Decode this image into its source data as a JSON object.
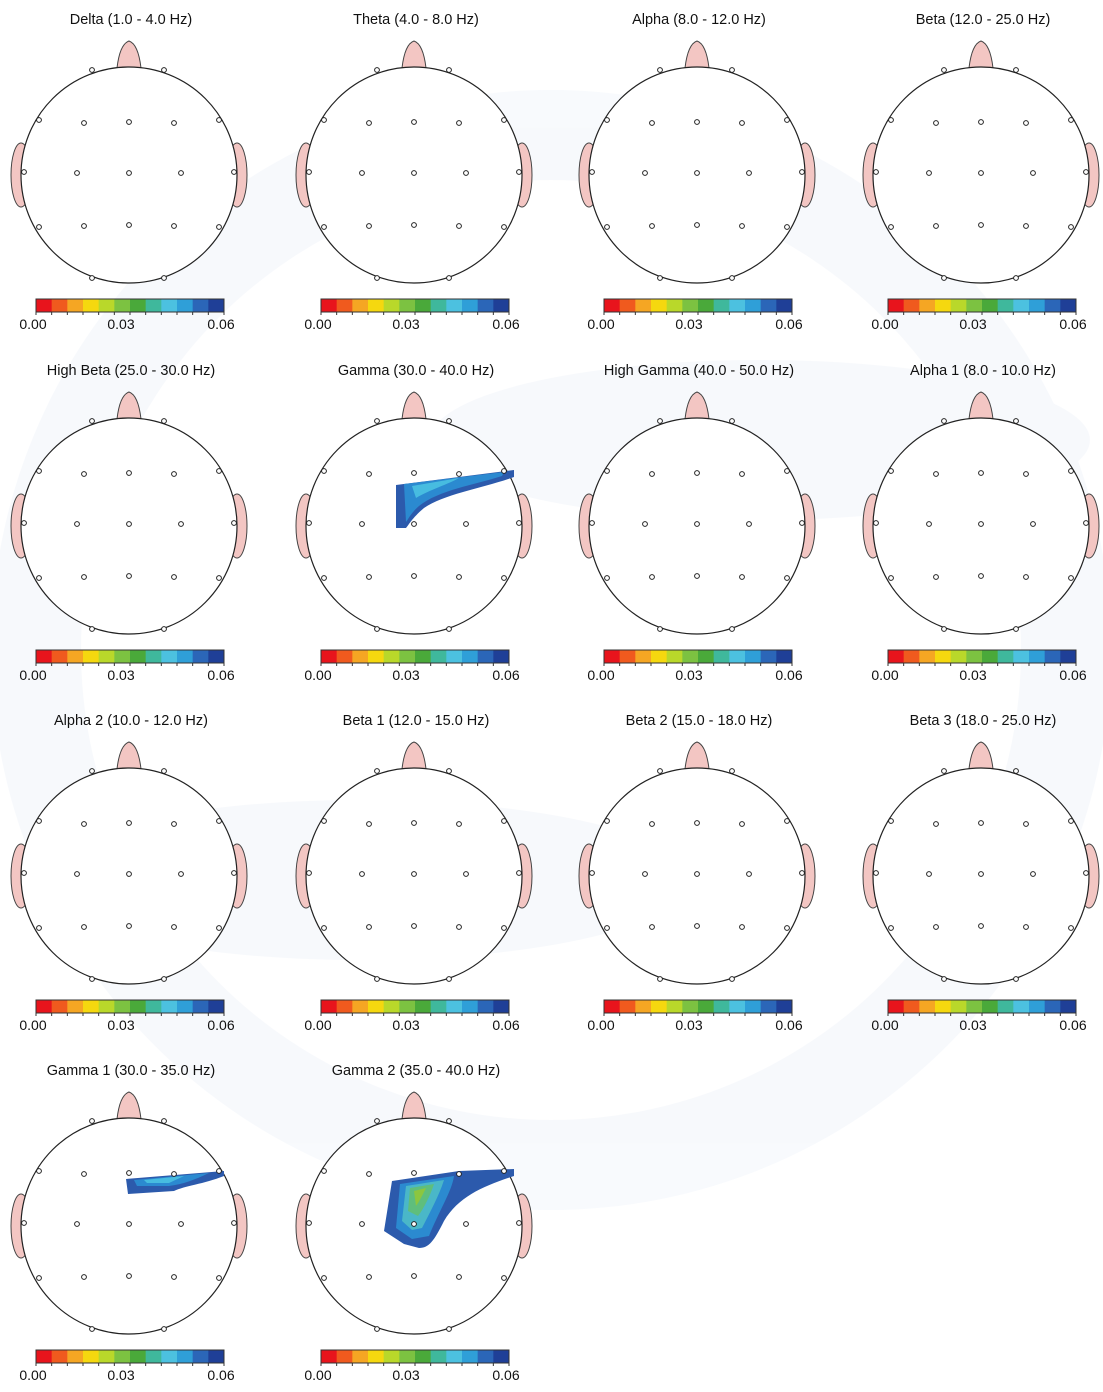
{
  "scale": {
    "colors": [
      "#e8141c",
      "#f05a1e",
      "#f5a623",
      "#f5d80f",
      "#b9d82a",
      "#7cc241",
      "#4aa93a",
      "#3fb89c",
      "#4cc1e0",
      "#2f9fd8",
      "#2b66b8",
      "#1f3f97"
    ],
    "tick_labels": [
      "0.00",
      "0.03",
      "0.06"
    ]
  },
  "chart_data": [
    {
      "type": "heatmap",
      "title": "Delta (1.0 - 4.0 Hz)",
      "hotspots": []
    },
    {
      "type": "heatmap",
      "title": "Theta (4.0 - 8.0 Hz)",
      "hotspots": []
    },
    {
      "type": "heatmap",
      "title": "Alpha (8.0 - 12.0 Hz)",
      "hotspots": []
    },
    {
      "type": "heatmap",
      "title": "Beta (12.0 - 25.0 Hz)",
      "hotspots": []
    },
    {
      "type": "heatmap",
      "title": "High Beta (25.0 - 30.0 Hz)",
      "hotspots": []
    },
    {
      "type": "heatmap",
      "title": "Gamma (30.0 - 40.0 Hz)",
      "hotspots": [
        "gamma"
      ]
    },
    {
      "type": "heatmap",
      "title": "High Gamma (40.0 - 50.0 Hz)",
      "hotspots": []
    },
    {
      "type": "heatmap",
      "title": "Alpha 1 (8.0 - 10.0 Hz)",
      "hotspots": []
    },
    {
      "type": "heatmap",
      "title": "Alpha 2 (10.0 - 12.0 Hz)",
      "hotspots": []
    },
    {
      "type": "heatmap",
      "title": "Beta 1 (12.0 - 15.0 Hz)",
      "hotspots": []
    },
    {
      "type": "heatmap",
      "title": "Beta 2 (15.0 - 18.0 Hz)",
      "hotspots": []
    },
    {
      "type": "heatmap",
      "title": "Beta 3 (18.0 - 25.0 Hz)",
      "hotspots": []
    },
    {
      "type": "heatmap",
      "title": "Gamma 1 (30.0 - 35.0 Hz)",
      "hotspots": [
        "gamma1"
      ]
    },
    {
      "type": "heatmap",
      "title": "Gamma 2 (35.0 - 40.0 Hz)",
      "hotspots": [
        "gamma2"
      ]
    }
  ]
}
